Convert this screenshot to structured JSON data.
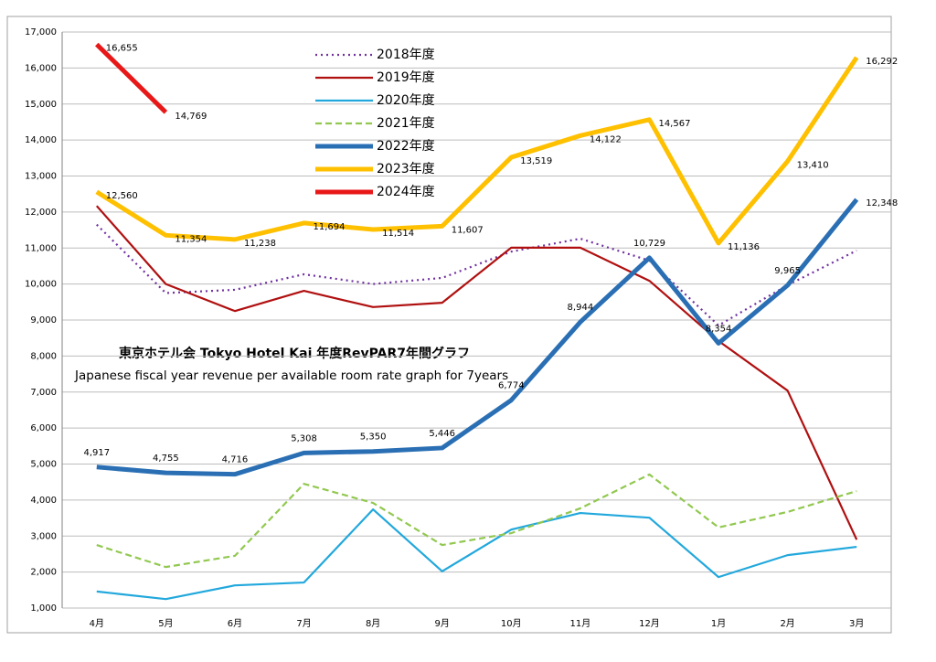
{
  "chart_data": {
    "type": "line",
    "title": "東京ホテル会 Tokyo Hotel Kai  年度RevPAR7年間グラフ",
    "subtitle": "Japanese fiscal year revenue per available room rate graph for 7years",
    "categories": [
      "4月",
      "5月",
      "6月",
      "7月",
      "8月",
      "9月",
      "10月",
      "11月",
      "12月",
      "1月",
      "2月",
      "3月"
    ],
    "ylim": [
      1000,
      17000
    ],
    "yticks": [
      {
        "value": 1000,
        "label": "1,000"
      },
      {
        "value": 2000,
        "label": "2,000"
      },
      {
        "value": 3000,
        "label": "3,000"
      },
      {
        "value": 4000,
        "label": "4,000"
      },
      {
        "value": 5000,
        "label": "5,000"
      },
      {
        "value": 6000,
        "label": "6,000"
      },
      {
        "value": 7000,
        "label": "7,000"
      },
      {
        "value": 8000,
        "label": "8,000"
      },
      {
        "value": 9000,
        "label": "9,000"
      },
      {
        "value": 10000,
        "label": "10,000"
      },
      {
        "value": 11000,
        "label": "11,000"
      },
      {
        "value": 12000,
        "label": "12,000"
      },
      {
        "value": 13000,
        "label": "13,000"
      },
      {
        "value": 14000,
        "label": "14,000"
      },
      {
        "value": 15000,
        "label": "15,000"
      },
      {
        "value": 16000,
        "label": "16,000"
      },
      {
        "value": 17000,
        "label": "17,000"
      }
    ],
    "grid": true,
    "series": [
      {
        "name": "2018年度",
        "color": "#7030a0",
        "line_style": "dotted",
        "bold": false,
        "values": [
          11650,
          9750,
          9840,
          10270,
          10000,
          10170,
          10900,
          11260,
          10650,
          8850,
          9970,
          10930
        ]
      },
      {
        "name": "2019年度",
        "color": "#b01010",
        "line_style": "solid",
        "bold": false,
        "values": [
          12170,
          10000,
          9250,
          9810,
          9360,
          9480,
          11010,
          11010,
          10090,
          8420,
          7040,
          2900
        ]
      },
      {
        "name": "2020年度",
        "color": "#22a8dc",
        "line_style": "solid",
        "bold": false,
        "values": [
          1460,
          1250,
          1630,
          1710,
          3740,
          2020,
          3180,
          3640,
          3510,
          1860,
          2470,
          2700
        ]
      },
      {
        "name": "2021年度",
        "color": "#92c850",
        "line_style": "dashed",
        "bold": false,
        "values": [
          2750,
          2140,
          2450,
          4450,
          3920,
          2750,
          3080,
          3770,
          4710,
          3240,
          3670,
          4250
        ]
      },
      {
        "name": "2022年度",
        "color": "#2a6fb4",
        "line_style": "solid",
        "bold": true,
        "values": [
          4917,
          4755,
          4716,
          5308,
          5350,
          5446,
          6774,
          8944,
          10729,
          8354,
          9965,
          12348
        ],
        "value_labels": [
          "4,917",
          "4,755",
          "4,716",
          "5,308",
          "5,350",
          "5,446",
          "6,774",
          "8,944",
          "10,729",
          "8,354",
          "9,965",
          "12,348"
        ]
      },
      {
        "name": "2023年度",
        "color": "#ffc000",
        "line_style": "solid",
        "bold": true,
        "values": [
          12560,
          11354,
          11238,
          11694,
          11514,
          11607,
          13519,
          14122,
          14567,
          11136,
          13410,
          16292
        ],
        "value_labels": [
          "12,560",
          "11,354",
          "11,238",
          "11,694",
          "11,514",
          "11,607",
          "13,519",
          "14,122",
          "14,567",
          "11,136",
          "13,410",
          "16,292"
        ]
      },
      {
        "name": "2024年度",
        "color": "#e81818",
        "line_style": "solid",
        "bold": true,
        "values": [
          16655,
          14769,
          null,
          null,
          null,
          null,
          null,
          null,
          null,
          null,
          null,
          null
        ],
        "value_labels": [
          "16,655",
          "14,769",
          null,
          null,
          null,
          null,
          null,
          null,
          null,
          null,
          null,
          null
        ]
      }
    ]
  }
}
